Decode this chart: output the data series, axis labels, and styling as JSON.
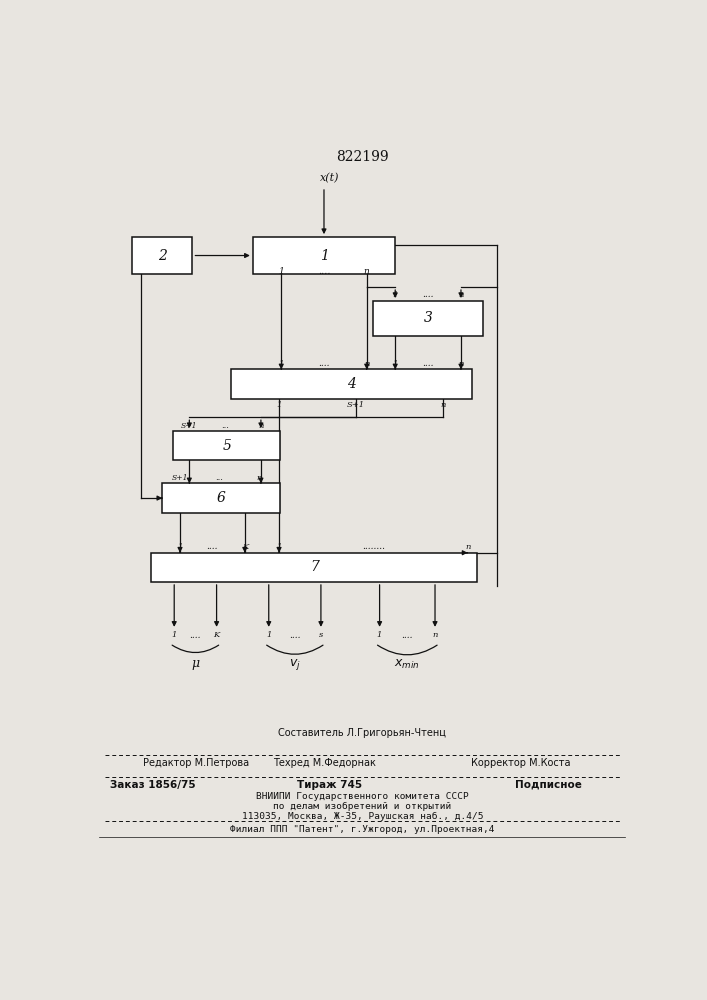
{
  "title": "822199",
  "bg_color": "#e8e5e0",
  "box_color": "#ffffff",
  "line_color": "#111111",
  "b2": [
    0.08,
    0.8,
    0.11,
    0.048
  ],
  "b1": [
    0.3,
    0.8,
    0.26,
    0.048
  ],
  "b3": [
    0.52,
    0.72,
    0.2,
    0.045
  ],
  "b4": [
    0.26,
    0.638,
    0.44,
    0.038
  ],
  "b5": [
    0.155,
    0.558,
    0.195,
    0.038
  ],
  "b6": [
    0.135,
    0.49,
    0.215,
    0.038
  ],
  "b7": [
    0.115,
    0.4,
    0.595,
    0.038
  ]
}
